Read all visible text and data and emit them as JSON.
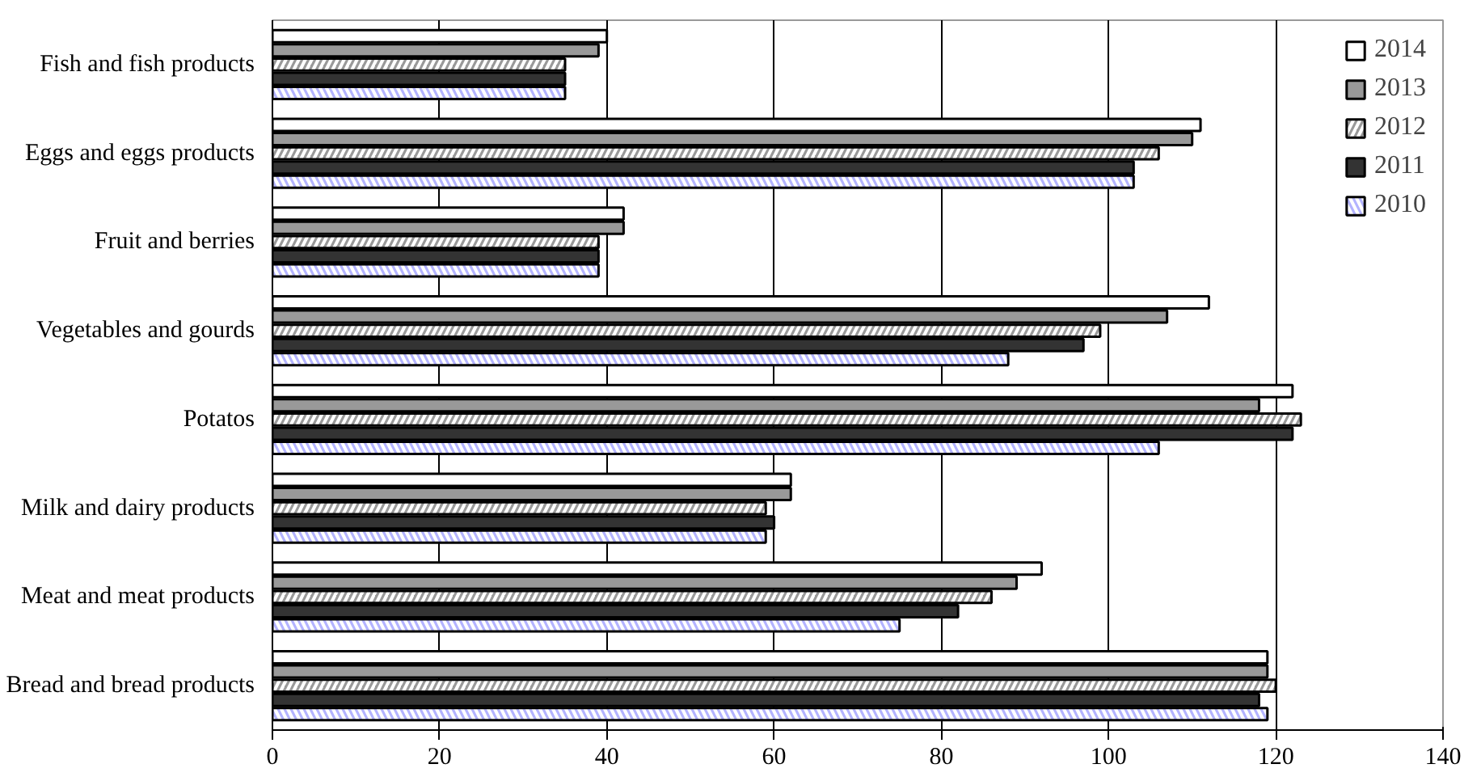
{
  "chart_data": {
    "type": "bar",
    "orientation": "horizontal",
    "categories": [
      "Fish and fish products",
      "Eggs and eggs products",
      "Fruit and berries",
      "Vegetables and gourds",
      "Potatos",
      "Milk and dairy products",
      "Meat and meat products",
      "Bread and bread products"
    ],
    "series": [
      {
        "name": "2014",
        "color": "#ffffff",
        "values": [
          40,
          111,
          42,
          112,
          122,
          62,
          92,
          119
        ]
      },
      {
        "name": "2013",
        "color": "#999999",
        "values": [
          39,
          110,
          42,
          107,
          118,
          62,
          89,
          119
        ]
      },
      {
        "name": "2012",
        "color": "#999999",
        "values": [
          35,
          106,
          39,
          99,
          123,
          59,
          86,
          120
        ]
      },
      {
        "name": "2011",
        "color": "#333333",
        "values": [
          35,
          103,
          39,
          97,
          122,
          60,
          82,
          118
        ]
      },
      {
        "name": "2010",
        "color": "#b3b3ff",
        "values": [
          35,
          103,
          39,
          88,
          106,
          59,
          75,
          119
        ]
      }
    ],
    "xlim": [
      0,
      140
    ],
    "xticks": [
      0,
      20,
      40,
      60,
      80,
      100,
      120,
      140
    ],
    "grid": "x",
    "legend": "top right"
  }
}
